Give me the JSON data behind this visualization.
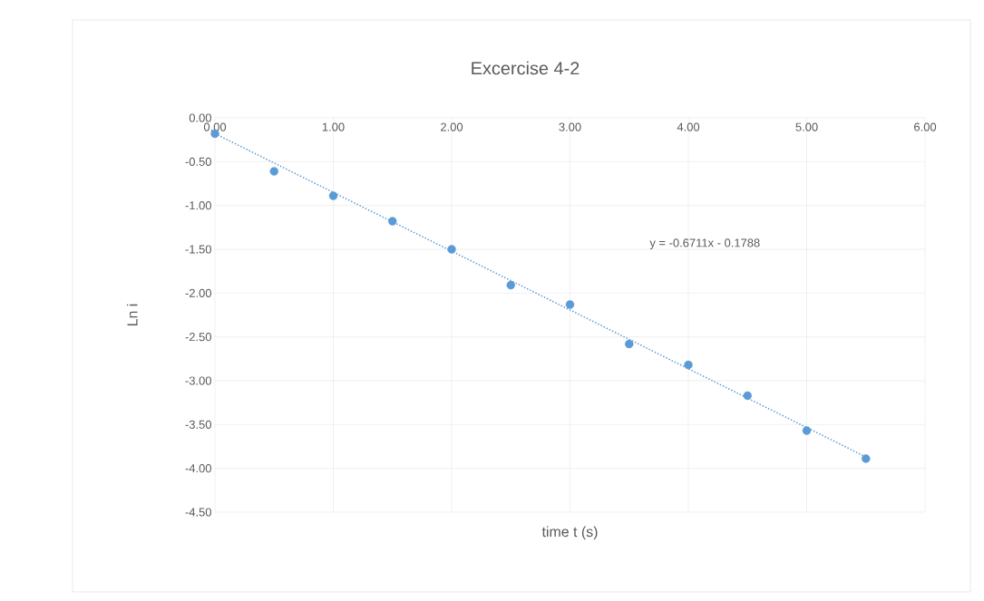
{
  "chart_data": {
    "type": "scatter",
    "title": "Excercise 4-2",
    "xlabel": "time t (s)",
    "ylabel": "Ln i",
    "xlim": [
      0,
      6
    ],
    "xticks": [
      {
        "value": 0,
        "label": "0.00"
      },
      {
        "value": 1,
        "label": "1.00"
      },
      {
        "value": 2,
        "label": "2.00"
      },
      {
        "value": 3,
        "label": "3.00"
      },
      {
        "value": 4,
        "label": "4.00"
      },
      {
        "value": 5,
        "label": "5.00"
      },
      {
        "value": 6,
        "label": "6.00"
      }
    ],
    "ylim": [
      -4.5,
      0
    ],
    "yticks": [
      {
        "value": 0,
        "label": "0.00"
      },
      {
        "value": -0.5,
        "label": "-0.50"
      },
      {
        "value": -1,
        "label": "-1.00"
      },
      {
        "value": -1.5,
        "label": "-1.50"
      },
      {
        "value": -2,
        "label": "-2.00"
      },
      {
        "value": -2.5,
        "label": "-2.50"
      },
      {
        "value": -3,
        "label": "-3.00"
      },
      {
        "value": -3.5,
        "label": "-3.50"
      },
      {
        "value": -4,
        "label": "-4.00"
      },
      {
        "value": -4.5,
        "label": "-4.50"
      }
    ],
    "grid": true,
    "series": [
      {
        "marker": "circle",
        "color": "#5b9bd5",
        "x": [
          0,
          0.5,
          1,
          1.5,
          2,
          2.5,
          3,
          3.5,
          4,
          4.5,
          5,
          5.5
        ],
        "values": [
          -0.18,
          -0.61,
          -0.89,
          -1.18,
          -1.5,
          -1.91,
          -2.13,
          -2.58,
          -2.82,
          -3.17,
          -3.57,
          -3.89
        ]
      },
      {
        "type": "line",
        "color": "#5b9bd5",
        "line_style": "dotted",
        "x": [
          0,
          5.5
        ],
        "values": [
          -0.18,
          -3.87
        ]
      }
    ],
    "annotations": [
      "y = -0.6711x - 0.1788"
    ]
  }
}
